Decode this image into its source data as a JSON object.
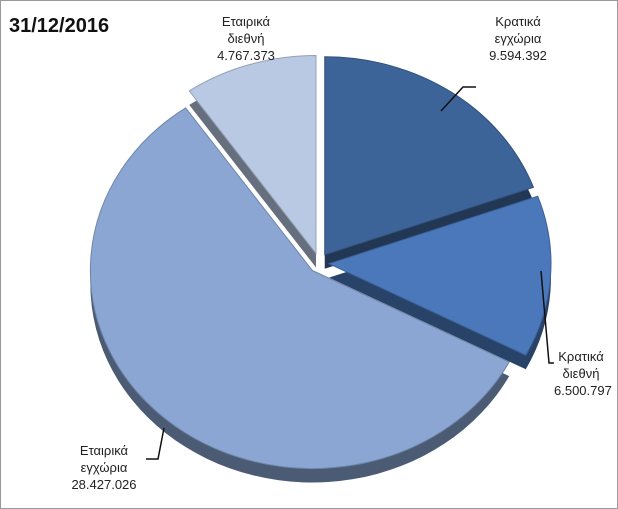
{
  "chart_data": {
    "type": "pie",
    "title": "31/12/2016",
    "categories": [
      "Κρατικά εγχώρια",
      "Κρατικά διεθνή",
      "Εταιρικά εγχώρια",
      "Εταιρικά διεθνή"
    ],
    "values": [
      9594392,
      6500797,
      28427026,
      4767373
    ],
    "value_labels": [
      "9.594.392",
      "6.500.797",
      "28.427.026",
      "4.767.373"
    ],
    "colors": [
      "#3d6499",
      "#4a78bb",
      "#8ba6d3",
      "#b9c9e3"
    ]
  }
}
